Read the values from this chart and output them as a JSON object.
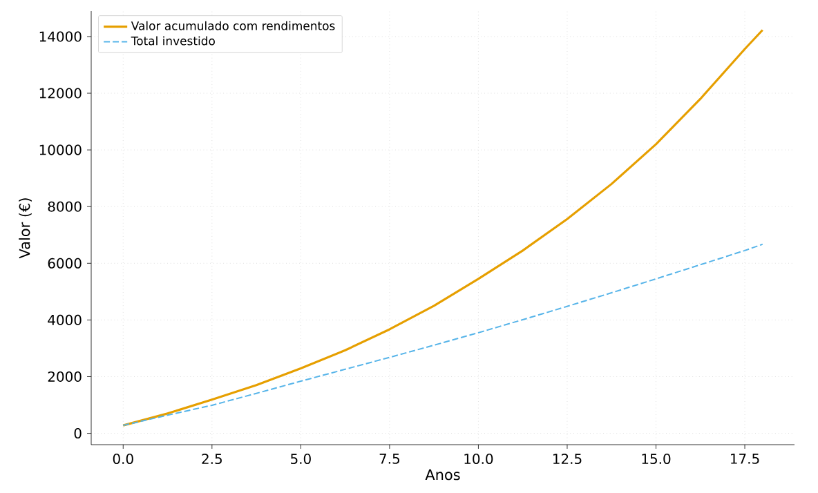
{
  "chart_data": {
    "type": "line",
    "xlabel": "Anos",
    "ylabel": "Valor (€)",
    "xlim": [
      -0.9,
      18.9
    ],
    "ylim": [
      -400,
      14900
    ],
    "xticks": [
      {
        "value": 0,
        "label": "0.0"
      },
      {
        "value": 2.5,
        "label": "2.5"
      },
      {
        "value": 5,
        "label": "5.0"
      },
      {
        "value": 7.5,
        "label": "7.5"
      },
      {
        "value": 10,
        "label": "10.0"
      },
      {
        "value": 12.5,
        "label": "12.5"
      },
      {
        "value": 15,
        "label": "15.0"
      },
      {
        "value": 17.5,
        "label": "17.5"
      }
    ],
    "yticks": [
      0,
      2000,
      4000,
      6000,
      8000,
      10000,
      12000,
      14000
    ],
    "grid": true,
    "legend": "top left",
    "series": [
      {
        "name": "Valor acumulado com rendimentos",
        "color": "#e69f00",
        "line_style": "solid",
        "x": [
          0,
          1.25,
          2.5,
          3.75,
          5,
          6.25,
          7.5,
          8.75,
          10,
          11.25,
          12.5,
          13.75,
          15,
          16.25,
          17.5,
          18
        ],
        "values": [
          280,
          700,
          1190,
          1700,
          2290,
          2930,
          3670,
          4500,
          5450,
          6450,
          7560,
          8800,
          10200,
          11800,
          13560,
          14230
        ]
      },
      {
        "name": "Total investido",
        "color": "#56b4e9",
        "line_style": "dashed",
        "x": [
          0,
          1.25,
          2.5,
          3.75,
          5,
          6.25,
          7.5,
          8.75,
          10,
          11.25,
          12.5,
          13.75,
          15,
          16.25,
          17.5,
          18
        ],
        "values": [
          280,
          640,
          990,
          1410,
          1840,
          2260,
          2680,
          3110,
          3550,
          4010,
          4480,
          4960,
          5450,
          5950,
          6450,
          6670
        ]
      }
    ]
  }
}
